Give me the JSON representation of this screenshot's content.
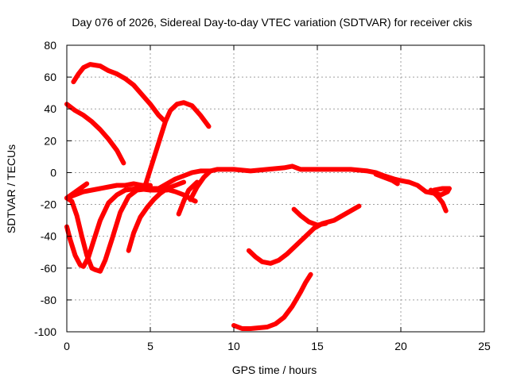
{
  "chart_data": {
    "type": "line",
    "title": "Day 076 of 2026, Sidereal Day-to-day VTEC variation (SDTVAR) for receiver ckis",
    "xlabel": "GPS time / hours",
    "ylabel": "SDTVAR / TECUs",
    "xlim": [
      0,
      25
    ],
    "ylim": [
      -100,
      80
    ],
    "xticks": [
      0,
      5,
      10,
      15,
      20,
      25
    ],
    "yticks": [
      -100,
      -80,
      -60,
      -40,
      -20,
      0,
      20,
      40,
      60,
      80
    ],
    "grid": true,
    "legend": "none",
    "series_color": "#ff0000",
    "series": [
      {
        "points": [
          [
            0.4,
            57
          ],
          [
            0.7,
            62
          ],
          [
            1.0,
            66
          ],
          [
            1.4,
            68
          ],
          [
            2.0,
            67
          ],
          [
            2.5,
            64
          ],
          [
            3.0,
            62
          ],
          [
            3.5,
            59
          ],
          [
            4.0,
            55
          ],
          [
            4.5,
            49
          ],
          [
            5.0,
            43
          ],
          [
            5.5,
            36
          ],
          [
            5.8,
            33
          ]
        ]
      },
      {
        "points": [
          [
            0.0,
            43
          ],
          [
            0.5,
            39
          ],
          [
            1.0,
            36
          ],
          [
            1.5,
            32
          ],
          [
            2.0,
            27
          ],
          [
            2.5,
            21
          ],
          [
            3.0,
            14
          ],
          [
            3.4,
            6
          ]
        ]
      },
      {
        "points": [
          [
            4.7,
            -8
          ],
          [
            5.0,
            2
          ],
          [
            5.3,
            12
          ],
          [
            5.6,
            22
          ],
          [
            5.9,
            32
          ],
          [
            6.2,
            39
          ],
          [
            6.6,
            43
          ],
          [
            7.0,
            44
          ],
          [
            7.5,
            42
          ],
          [
            8.0,
            36
          ],
          [
            8.5,
            29
          ]
        ]
      },
      {
        "points": [
          [
            0.0,
            -16
          ],
          [
            0.3,
            -18
          ],
          [
            0.6,
            -27
          ],
          [
            0.9,
            -40
          ],
          [
            1.2,
            -52
          ],
          [
            1.5,
            -60
          ],
          [
            1.7,
            -61
          ],
          [
            2.0,
            -62
          ],
          [
            2.3,
            -55
          ],
          [
            2.7,
            -42
          ],
          [
            3.2,
            -25
          ],
          [
            3.7,
            -15
          ],
          [
            4.2,
            -11
          ],
          [
            5.0,
            -10
          ],
          [
            5.8,
            -10
          ],
          [
            6.5,
            -12
          ],
          [
            7.0,
            -14
          ],
          [
            7.5,
            -17
          ],
          [
            7.7,
            -18
          ]
        ]
      },
      {
        "points": [
          [
            0.0,
            -34
          ],
          [
            0.2,
            -42
          ],
          [
            0.5,
            -52
          ],
          [
            0.8,
            -58
          ],
          [
            1.0,
            -59
          ],
          [
            1.3,
            -53
          ],
          [
            1.6,
            -43
          ],
          [
            2.0,
            -30
          ],
          [
            2.5,
            -19
          ],
          [
            3.0,
            -14
          ],
          [
            3.5,
            -11
          ],
          [
            4.2,
            -10
          ],
          [
            5.0,
            -11
          ],
          [
            6.0,
            -11
          ]
        ]
      },
      {
        "points": [
          [
            0.0,
            -16
          ],
          [
            0.5,
            -14
          ],
          [
            1.0,
            -12
          ],
          [
            1.5,
            -11
          ],
          [
            2.0,
            -10
          ],
          [
            2.5,
            -9
          ],
          [
            3.0,
            -8
          ],
          [
            3.5,
            -8
          ],
          [
            4.0,
            -7
          ],
          [
            4.5,
            -8
          ],
          [
            5.0,
            -8
          ]
        ]
      },
      {
        "points": [
          [
            0.0,
            -16
          ],
          [
            0.4,
            -13
          ],
          [
            0.8,
            -10
          ],
          [
            1.2,
            -7
          ]
        ]
      },
      {
        "points": [
          [
            3.7,
            -49
          ],
          [
            4.0,
            -38
          ],
          [
            4.4,
            -28
          ],
          [
            4.8,
            -22
          ],
          [
            5.2,
            -17
          ],
          [
            5.6,
            -13
          ],
          [
            6.0,
            -10
          ],
          [
            6.5,
            -8
          ],
          [
            7.0,
            -6
          ]
        ]
      },
      {
        "points": [
          [
            6.7,
            -26
          ],
          [
            7.0,
            -18
          ],
          [
            7.3,
            -11
          ],
          [
            7.8,
            -6
          ]
        ]
      },
      {
        "points": [
          [
            7.4,
            -17
          ],
          [
            7.8,
            -9
          ],
          [
            8.2,
            -3
          ],
          [
            8.6,
            1
          ],
          [
            9.0,
            2
          ],
          [
            10.0,
            2
          ],
          [
            11.0,
            1
          ],
          [
            12.0,
            2
          ],
          [
            13.0,
            3
          ],
          [
            13.5,
            4
          ],
          [
            14.0,
            2
          ],
          [
            15.0,
            2
          ],
          [
            16.0,
            2
          ],
          [
            17.0,
            2
          ],
          [
            18.0,
            1
          ],
          [
            18.5,
            0
          ],
          [
            19.0,
            -2
          ],
          [
            19.6,
            -4
          ],
          [
            20.0,
            -5
          ],
          [
            20.5,
            -6
          ],
          [
            21.0,
            -8
          ],
          [
            21.5,
            -12
          ],
          [
            22.0,
            -13
          ],
          [
            22.4,
            -14
          ],
          [
            22.8,
            -12
          ],
          [
            22.9,
            -10
          ]
        ]
      },
      {
        "points": [
          [
            5.0,
            -11
          ],
          [
            5.5,
            -10
          ],
          [
            6.0,
            -7
          ],
          [
            6.5,
            -4
          ],
          [
            7.0,
            -2
          ],
          [
            7.5,
            0
          ],
          [
            8.0,
            1
          ],
          [
            8.6,
            1
          ]
        ]
      },
      {
        "points": [
          [
            18.5,
            -1
          ],
          [
            19.0,
            -3
          ],
          [
            19.5,
            -5
          ],
          [
            19.8,
            -7
          ]
        ]
      },
      {
        "points": [
          [
            21.8,
            -11
          ],
          [
            22.2,
            -15
          ],
          [
            22.5,
            -19
          ],
          [
            22.7,
            -24
          ]
        ]
      },
      {
        "points": [
          [
            22.0,
            -11
          ],
          [
            22.5,
            -10
          ],
          [
            22.9,
            -10
          ]
        ]
      },
      {
        "points": [
          [
            10.0,
            -96
          ],
          [
            10.5,
            -98
          ],
          [
            11.0,
            -98
          ],
          [
            12.0,
            -97
          ],
          [
            12.5,
            -95
          ],
          [
            13.0,
            -91
          ],
          [
            13.5,
            -84
          ],
          [
            14.0,
            -75
          ],
          [
            14.3,
            -69
          ],
          [
            14.6,
            -64
          ]
        ]
      },
      {
        "points": [
          [
            10.9,
            -49
          ],
          [
            11.3,
            -53
          ],
          [
            11.7,
            -56
          ],
          [
            12.2,
            -57
          ],
          [
            12.7,
            -55
          ],
          [
            13.2,
            -51
          ],
          [
            13.8,
            -45
          ],
          [
            14.3,
            -40
          ],
          [
            14.8,
            -35
          ],
          [
            15.3,
            -32
          ],
          [
            16.0,
            -30
          ],
          [
            16.5,
            -27
          ],
          [
            17.0,
            -24
          ],
          [
            17.5,
            -21
          ]
        ]
      },
      {
        "points": [
          [
            13.6,
            -23
          ],
          [
            14.0,
            -27
          ],
          [
            14.5,
            -31
          ],
          [
            15.0,
            -33
          ],
          [
            15.5,
            -32
          ]
        ]
      }
    ]
  }
}
